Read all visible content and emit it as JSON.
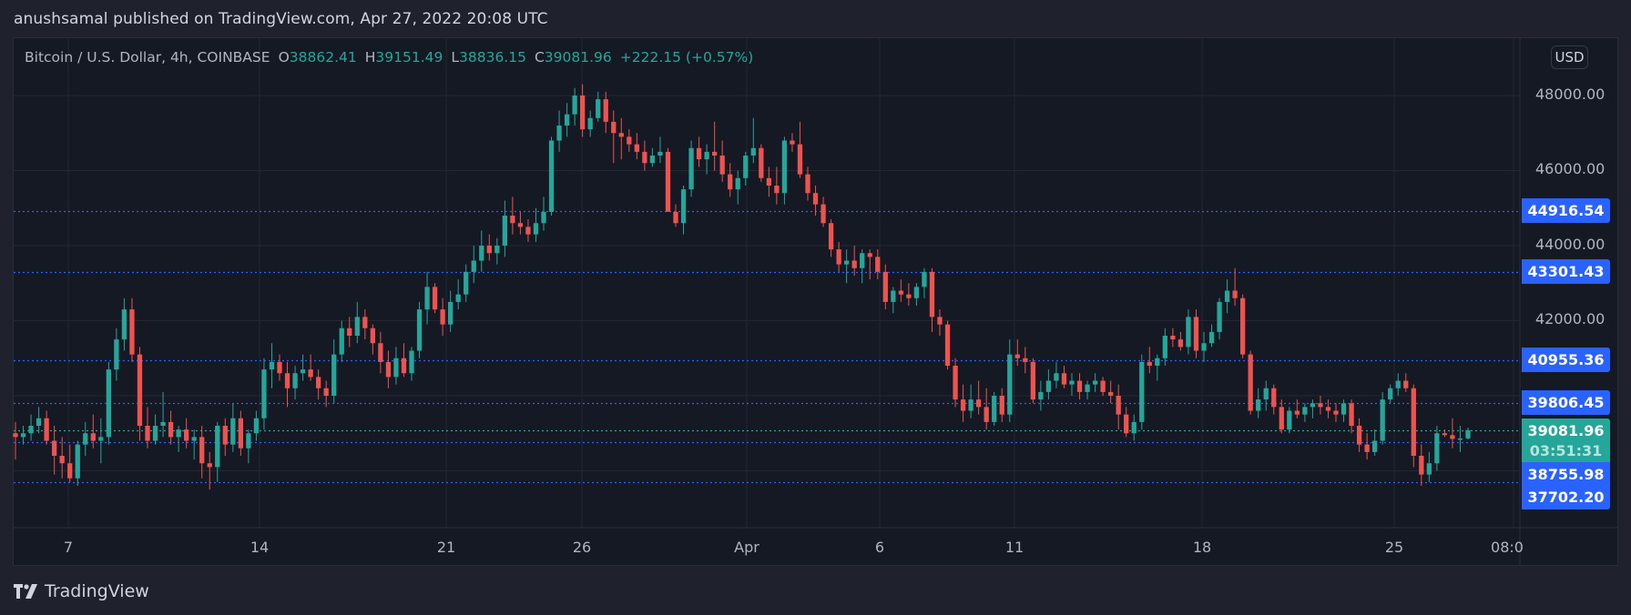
{
  "header": {
    "publish_line": "anushsamal published on TradingView.com, Apr 27, 2022 20:08 UTC"
  },
  "legend": {
    "symbol": "Bitcoin / U.S. Dollar, 4h, COINBASE",
    "open_label": "O",
    "open": "38862.41",
    "high_label": "H",
    "high": "39151.49",
    "low_label": "L",
    "low": "38836.15",
    "close_label": "C",
    "close": "39081.96",
    "change": "+222.15 (+0.57%)"
  },
  "price_axis": {
    "currency": "USD",
    "ticks": [
      "48000.00",
      "46000.00",
      "44000.00",
      "42000.00"
    ],
    "level_tags": [
      "44916.54",
      "43301.43",
      "40955.36",
      "39806.45",
      "38755.98",
      "37702.20"
    ],
    "current_price": "39081.96",
    "countdown": "03:51:31"
  },
  "time_axis": {
    "ticks": [
      "7",
      "14",
      "21",
      "26",
      "Apr",
      "6",
      "11",
      "18",
      "25",
      "08:0"
    ]
  },
  "colors": {
    "up": "#26a69a",
    "down": "#ef5350",
    "level_line": "#2962ff",
    "background": "#151924",
    "grid": "#232733"
  },
  "brand": {
    "name": "TradingView"
  },
  "chart_data": {
    "type": "candlestick",
    "title": "Bitcoin / U.S. Dollar, 4h, COINBASE",
    "xlabel": "",
    "ylabel": "USD",
    "ylim": [
      36400,
      49500
    ],
    "grid": true,
    "x_ticks": [
      "7",
      "14",
      "21",
      "26",
      "Apr",
      "6",
      "11",
      "18",
      "25",
      "08:00"
    ],
    "y_ticks": [
      42000,
      44000,
      46000,
      48000
    ],
    "horizontal_levels": [
      44916.54,
      43301.43,
      40955.36,
      39806.45,
      38755.98,
      37702.2
    ],
    "current_price": 39081.96,
    "last_candle": {
      "open": 38862.41,
      "high": 39151.49,
      "low": 38836.15,
      "close": 39081.96
    },
    "candles_ohlc": [
      [
        39000,
        39300,
        38300,
        38900
      ],
      [
        38900,
        39200,
        38700,
        39000
      ],
      [
        39000,
        39500,
        38800,
        39200
      ],
      [
        39200,
        39700,
        39000,
        39400
      ],
      [
        39400,
        39600,
        38700,
        38800
      ],
      [
        38800,
        39200,
        37900,
        38400
      ],
      [
        38400,
        38900,
        37800,
        38200
      ],
      [
        38200,
        38700,
        37700,
        37800
      ],
      [
        37800,
        38800,
        37600,
        38700
      ],
      [
        38700,
        39300,
        38400,
        39000
      ],
      [
        39000,
        39500,
        38600,
        38800
      ],
      [
        38800,
        39400,
        38200,
        38900
      ],
      [
        38900,
        40900,
        38700,
        40700
      ],
      [
        40700,
        41800,
        40400,
        41500
      ],
      [
        41500,
        42600,
        41200,
        42300
      ],
      [
        42300,
        42600,
        40900,
        41100
      ],
      [
        41100,
        41300,
        38800,
        39200
      ],
      [
        39200,
        39700,
        38600,
        38800
      ],
      [
        38800,
        39500,
        38700,
        39200
      ],
      [
        39200,
        40100,
        38900,
        39300
      ],
      [
        39300,
        39600,
        38700,
        38900
      ],
      [
        38900,
        39200,
        38500,
        39100
      ],
      [
        39100,
        39400,
        38600,
        38800
      ],
      [
        38800,
        39100,
        38300,
        38900
      ],
      [
        38900,
        39200,
        37800,
        38200
      ],
      [
        38200,
        38500,
        37500,
        38100
      ],
      [
        38100,
        39300,
        37700,
        39200
      ],
      [
        39200,
        39400,
        38400,
        38700
      ],
      [
        38700,
        39800,
        38500,
        39400
      ],
      [
        39400,
        39600,
        38400,
        38600
      ],
      [
        38600,
        39100,
        38200,
        39000
      ],
      [
        39000,
        39600,
        38800,
        39400
      ],
      [
        39400,
        41000,
        39100,
        40700
      ],
      [
        40700,
        41400,
        40200,
        40900
      ],
      [
        40900,
        41100,
        40400,
        40600
      ],
      [
        40600,
        40900,
        39700,
        40200
      ],
      [
        40200,
        40800,
        39900,
        40600
      ],
      [
        40600,
        41100,
        40400,
        40700
      ],
      [
        40700,
        41100,
        40400,
        40500
      ],
      [
        40500,
        40700,
        39900,
        40200
      ],
      [
        40200,
        40400,
        39700,
        40000
      ],
      [
        40000,
        41500,
        39800,
        41100
      ],
      [
        41100,
        42000,
        40900,
        41800
      ],
      [
        41800,
        42100,
        41300,
        41600
      ],
      [
        41600,
        42500,
        41400,
        42100
      ],
      [
        42100,
        42300,
        41500,
        41800
      ],
      [
        41800,
        41900,
        41100,
        41400
      ],
      [
        41400,
        41700,
        40600,
        40900
      ],
      [
        40900,
        41200,
        40200,
        40500
      ],
      [
        40500,
        41300,
        40300,
        41000
      ],
      [
        41000,
        41400,
        40500,
        40600
      ],
      [
        40600,
        41300,
        40400,
        41200
      ],
      [
        41200,
        42500,
        41000,
        42300
      ],
      [
        42300,
        43300,
        41900,
        42900
      ],
      [
        42900,
        43000,
        42200,
        42300
      ],
      [
        42300,
        42600,
        41600,
        41900
      ],
      [
        41900,
        42800,
        41700,
        42500
      ],
      [
        42500,
        43100,
        42300,
        42700
      ],
      [
        42700,
        43500,
        42500,
        43300
      ],
      [
        43300,
        44000,
        43000,
        43600
      ],
      [
        43600,
        44400,
        43300,
        44000
      ],
      [
        44000,
        44300,
        43600,
        43800
      ],
      [
        43800,
        44200,
        43500,
        44000
      ],
      [
        44000,
        45200,
        43700,
        44800
      ],
      [
        44800,
        45300,
        44300,
        44600
      ],
      [
        44600,
        44900,
        44300,
        44500
      ],
      [
        44500,
        44700,
        44100,
        44300
      ],
      [
        44300,
        45000,
        44100,
        44600
      ],
      [
        44600,
        45300,
        44400,
        44900
      ],
      [
        44900,
        46900,
        44800,
        46800
      ],
      [
        46800,
        47600,
        46500,
        47200
      ],
      [
        47200,
        47800,
        46900,
        47500
      ],
      [
        47500,
        48200,
        47200,
        48000
      ],
      [
        48000,
        48300,
        46900,
        47100
      ],
      [
        47100,
        47600,
        46900,
        47400
      ],
      [
        47400,
        48100,
        47300,
        47900
      ],
      [
        47900,
        48100,
        47000,
        47300
      ],
      [
        47300,
        47600,
        46200,
        47000
      ],
      [
        47000,
        47400,
        46300,
        46900
      ],
      [
        46900,
        47100,
        46500,
        46700
      ],
      [
        46700,
        47000,
        46300,
        46500
      ],
      [
        46500,
        46800,
        46000,
        46200
      ],
      [
        46200,
        46600,
        46100,
        46400
      ],
      [
        46400,
        46900,
        46200,
        46500
      ],
      [
        46500,
        46600,
        45600,
        44900
      ],
      [
        44900,
        45100,
        44500,
        44600
      ],
      [
        44600,
        45600,
        44300,
        45500
      ],
      [
        45500,
        46800,
        45300,
        46600
      ],
      [
        46600,
        46900,
        46100,
        46300
      ],
      [
        46300,
        46700,
        45900,
        46500
      ],
      [
        46500,
        47300,
        46000,
        46400
      ],
      [
        46400,
        46800,
        45700,
        45900
      ],
      [
        45900,
        46200,
        45300,
        45500
      ],
      [
        45500,
        46000,
        45100,
        45800
      ],
      [
        45800,
        46500,
        45600,
        46400
      ],
      [
        46400,
        47400,
        46200,
        46600
      ],
      [
        46600,
        46700,
        45700,
        45800
      ],
      [
        45800,
        46100,
        45300,
        45600
      ],
      [
        45600,
        46100,
        45100,
        45400
      ],
      [
        45400,
        46900,
        45100,
        46800
      ],
      [
        46800,
        47000,
        46500,
        46700
      ],
      [
        46700,
        47300,
        45800,
        45900
      ],
      [
        45900,
        46100,
        45200,
        45400
      ],
      [
        45400,
        45600,
        44800,
        45100
      ],
      [
        45100,
        45300,
        44500,
        44600
      ],
      [
        44600,
        44700,
        43700,
        43900
      ],
      [
        43900,
        44100,
        43300,
        43500
      ],
      [
        43500,
        43900,
        43000,
        43600
      ],
      [
        43600,
        44000,
        43200,
        43400
      ],
      [
        43400,
        43900,
        43000,
        43800
      ],
      [
        43800,
        43900,
        43100,
        43700
      ],
      [
        43700,
        43900,
        43100,
        43300
      ],
      [
        43300,
        43500,
        42300,
        42500
      ],
      [
        42500,
        42900,
        42200,
        42800
      ],
      [
        42800,
        43100,
        42500,
        42700
      ],
      [
        42700,
        43000,
        42400,
        42600
      ],
      [
        42600,
        43000,
        42400,
        42900
      ],
      [
        42900,
        43400,
        42600,
        43300
      ],
      [
        43300,
        43400,
        41700,
        42100
      ],
      [
        42100,
        42300,
        41600,
        41900
      ],
      [
        41900,
        42000,
        40700,
        40800
      ],
      [
        40800,
        41000,
        39700,
        39900
      ],
      [
        39900,
        40300,
        39300,
        39600
      ],
      [
        39600,
        40300,
        39400,
        39900
      ],
      [
        39900,
        40400,
        39500,
        39700
      ],
      [
        39700,
        40200,
        39100,
        39300
      ],
      [
        39300,
        40100,
        39200,
        40000
      ],
      [
        40000,
        40200,
        39300,
        39500
      ],
      [
        39500,
        41500,
        39300,
        41100
      ],
      [
        41100,
        41500,
        40800,
        41000
      ],
      [
        41000,
        41300,
        40600,
        40900
      ],
      [
        40900,
        41000,
        39800,
        39900
      ],
      [
        39900,
        40400,
        39600,
        40100
      ],
      [
        40100,
        40700,
        39900,
        40400
      ],
      [
        40400,
        40900,
        40200,
        40600
      ],
      [
        40600,
        40800,
        40200,
        40300
      ],
      [
        40300,
        40600,
        40000,
        40400
      ],
      [
        40400,
        40600,
        39900,
        40100
      ],
      [
        40100,
        40400,
        39900,
        40300
      ],
      [
        40300,
        40600,
        40100,
        40400
      ],
      [
        40400,
        40500,
        40000,
        40100
      ],
      [
        40100,
        40400,
        39800,
        40000
      ],
      [
        40000,
        40300,
        39100,
        39500
      ],
      [
        39500,
        39700,
        38900,
        39000
      ],
      [
        39000,
        39500,
        38800,
        39300
      ],
      [
        39300,
        41100,
        39100,
        40900
      ],
      [
        40900,
        41300,
        40600,
        40800
      ],
      [
        40800,
        41100,
        40400,
        41000
      ],
      [
        41000,
        41800,
        40800,
        41600
      ],
      [
        41600,
        41800,
        41300,
        41500
      ],
      [
        41500,
        41700,
        41200,
        41300
      ],
      [
        41300,
        42300,
        41100,
        42100
      ],
      [
        42100,
        42300,
        41000,
        41200
      ],
      [
        41200,
        41700,
        40900,
        41400
      ],
      [
        41400,
        41900,
        41300,
        41700
      ],
      [
        41700,
        42600,
        41500,
        42500
      ],
      [
        42500,
        43100,
        42200,
        42800
      ],
      [
        42800,
        43400,
        42400,
        42600
      ],
      [
        42600,
        42700,
        41000,
        41100
      ],
      [
        41100,
        41200,
        39500,
        39600
      ],
      [
        39600,
        40200,
        39400,
        39900
      ],
      [
        39900,
        40400,
        39600,
        40200
      ],
      [
        40200,
        40300,
        39500,
        39700
      ],
      [
        39700,
        39900,
        39000,
        39100
      ],
      [
        39100,
        39700,
        39000,
        39600
      ],
      [
        39600,
        39900,
        39400,
        39500
      ],
      [
        39500,
        39800,
        39300,
        39700
      ],
      [
        39700,
        39900,
        39400,
        39800
      ],
      [
        39800,
        40000,
        39500,
        39700
      ],
      [
        39700,
        39900,
        39400,
        39600
      ],
      [
        39600,
        39800,
        39300,
        39500
      ],
      [
        39500,
        39900,
        39300,
        39800
      ],
      [
        39800,
        39900,
        39000,
        39200
      ],
      [
        39200,
        39400,
        38500,
        38700
      ],
      [
        38700,
        39000,
        38300,
        38500
      ],
      [
        38500,
        39100,
        38400,
        38800
      ],
      [
        38800,
        40100,
        38700,
        39900
      ],
      [
        39900,
        40300,
        39800,
        40200
      ],
      [
        40200,
        40600,
        40000,
        40400
      ],
      [
        40400,
        40600,
        40100,
        40200
      ],
      [
        40200,
        40300,
        38100,
        38400
      ],
      [
        38400,
        38700,
        37600,
        37900
      ],
      [
        37900,
        38500,
        37700,
        38200
      ],
      [
        38200,
        39200,
        38000,
        39000
      ],
      [
        39000,
        39100,
        38900,
        38950
      ],
      [
        38950,
        39400,
        38600,
        38850
      ],
      [
        38850,
        39200,
        38500,
        38862
      ],
      [
        38862,
        39151,
        38836,
        39082
      ]
    ]
  }
}
